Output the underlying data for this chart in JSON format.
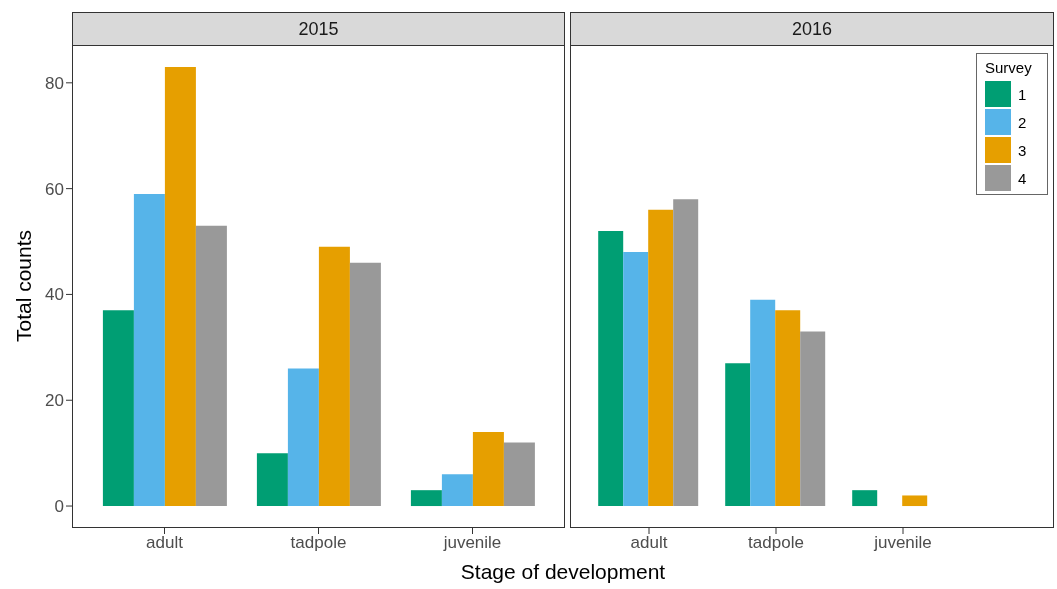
{
  "chart_data": [
    {
      "type": "bar",
      "title": "2015",
      "xlabel": "Stage of development",
      "ylabel": "Total counts",
      "categories": [
        "adult",
        "tadpole",
        "juvenile"
      ],
      "series": [
        {
          "color": "#009e73",
          "values": [
            37,
            10,
            3
          ]
        },
        {
          "color": "#56b4e9",
          "values": [
            59,
            26,
            6
          ]
        },
        {
          "color": "#e69f00",
          "values": [
            83,
            49,
            14
          ]
        },
        {
          "color": "#999999",
          "values": [
            53,
            46,
            12
          ]
        }
      ],
      "ylim": [
        -4.15,
        87.15
      ],
      "yticks": [
        0,
        20,
        40,
        60,
        80
      ],
      "grid": false,
      "legend": false
    },
    {
      "type": "bar",
      "title": "2016",
      "legend_title": "Survey",
      "categories": [
        "adult",
        "tadpole",
        "juvenile"
      ],
      "series": [
        {
          "name": "1",
          "color": "#009e73",
          "values": [
            52,
            27,
            3
          ]
        },
        {
          "name": "2",
          "color": "#56b4e9",
          "values": [
            48,
            39,
            null
          ]
        },
        {
          "name": "3",
          "color": "#e69f00",
          "values": [
            56,
            37,
            2
          ]
        },
        {
          "name": "4",
          "color": "#999999",
          "values": [
            58,
            33,
            null
          ]
        }
      ],
      "ylim": [
        -4.15,
        87.15
      ],
      "yticks": [
        0,
        20,
        40,
        60,
        80
      ],
      "grid": false,
      "legend": "top right",
      "tick_labels": "x"
    }
  ]
}
